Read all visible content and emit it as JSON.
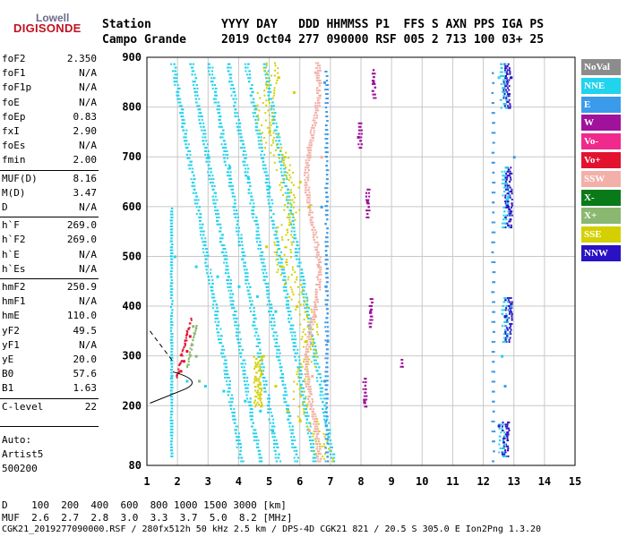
{
  "logo": {
    "brand": "Lowell",
    "product": "DIGISONDE"
  },
  "header": {
    "row1": "Station          YYYY DAY   DDD HHMMSS P1  FFS S AXN PPS IGA PS",
    "row2": "Campo Grande     2019 Oct04 277 090000 RSF 005 2 713 100 03+ 25"
  },
  "params": [
    {
      "k": "foF2",
      "v": "2.350"
    },
    {
      "k": "foF1",
      "v": "N/A"
    },
    {
      "k": "foF1p",
      "v": "N/A"
    },
    {
      "k": "foE",
      "v": "N/A"
    },
    {
      "k": "foEp",
      "v": "0.83"
    },
    {
      "k": "fxI",
      "v": "2.90"
    },
    {
      "k": "foEs",
      "v": "N/A"
    },
    {
      "k": "fmin",
      "v": "2.00"
    },
    {
      "k": "MUF(D)",
      "v": "8.16"
    },
    {
      "k": "M(D)",
      "v": "3.47"
    },
    {
      "k": "D",
      "v": "N/A"
    },
    {
      "k": "h`F",
      "v": "269.0"
    },
    {
      "k": "h`F2",
      "v": "269.0"
    },
    {
      "k": "h`E",
      "v": "N/A"
    },
    {
      "k": "h`Es",
      "v": "N/A"
    },
    {
      "k": "hmF2",
      "v": "250.9"
    },
    {
      "k": "hmF1",
      "v": "N/A"
    },
    {
      "k": "hmE",
      "v": "110.0"
    },
    {
      "k": "yF2",
      "v": "49.5"
    },
    {
      "k": "yF1",
      "v": "N/A"
    },
    {
      "k": "yE",
      "v": "20.0"
    },
    {
      "k": "B0",
      "v": "57.6"
    },
    {
      "k": "B1",
      "v": "1.63"
    },
    {
      "k": "C-level",
      "v": "22"
    }
  ],
  "autoscale": {
    "line1": "Auto:",
    "line2": "Artist5",
    "line3": "500200"
  },
  "legend": [
    {
      "label": "NoVal",
      "color": "#8c8c8c"
    },
    {
      "label": "NNE",
      "color": "#22d3ee"
    },
    {
      "label": "E",
      "color": "#3b9bea"
    },
    {
      "label": "W",
      "color": "#a0129c"
    },
    {
      "label": "Vo-",
      "color": "#f02a8c"
    },
    {
      "label": "Vo+",
      "color": "#e3122e"
    },
    {
      "label": "SSW",
      "color": "#f2b0a8"
    },
    {
      "label": "X-",
      "color": "#0a7a18"
    },
    {
      "label": "X+",
      "color": "#8ab870"
    },
    {
      "label": "SSE",
      "color": "#d4d000"
    },
    {
      "label": "NNW",
      "color": "#2a12c4"
    }
  ],
  "footer": {
    "row1": "D    100  200  400  600  800 1000 1500 3000 [km]",
    "row2": "MUF  2.6  2.7  2.8  3.0  3.3  3.7  5.0  8.2 [MHz]",
    "row3": "CGK21_2019277090000.RSF / 280fx512h 50 kHz 2.5 km / DPS-4D CGK21 821 / 20.5 S 305.0 E Ion2Png 1.3.20"
  },
  "chart_data": {
    "type": "scatter",
    "title": "",
    "xlabel": "",
    "ylabel": "",
    "xlim": [
      1,
      15
    ],
    "ylim": [
      80,
      900
    ],
    "x_ticks": [
      1,
      2,
      3,
      4,
      5,
      6,
      7,
      8,
      9,
      10,
      11,
      12,
      13,
      14,
      15
    ],
    "y_ticks": [
      80,
      200,
      300,
      400,
      500,
      600,
      700,
      800,
      900
    ],
    "grid": true,
    "legend_position": "right",
    "series": [
      {
        "name": "NNE",
        "color": "#22d3ee",
        "points": [
          [
            1.8,
            260
          ],
          [
            2.3,
            250
          ],
          [
            2.9,
            240
          ],
          [
            3.5,
            230
          ],
          [
            4.2,
            210
          ],
          [
            4.7,
            190
          ],
          [
            5.1,
            150
          ],
          [
            1.9,
            500
          ],
          [
            2.6,
            480
          ],
          [
            3.3,
            460
          ],
          [
            4.0,
            440
          ],
          [
            4.6,
            420
          ],
          [
            5.2,
            390
          ],
          [
            3.0,
            700
          ],
          [
            3.7,
            680
          ],
          [
            4.3,
            660
          ],
          [
            5.0,
            640
          ],
          [
            12.6,
            300
          ],
          [
            12.8,
            620
          ],
          [
            12.5,
            860
          ]
        ]
      },
      {
        "name": "E",
        "color": "#3b9bea",
        "points": [
          [
            6.8,
            250
          ],
          [
            6.9,
            330
          ],
          [
            6.85,
            440
          ],
          [
            6.7,
            600
          ],
          [
            12.7,
            240
          ],
          [
            12.9,
            400
          ],
          [
            13.0,
            700
          ],
          [
            6.8,
            850
          ]
        ]
      },
      {
        "name": "SSE",
        "color": "#d4d000",
        "points": [
          [
            4.8,
            300
          ],
          [
            5.2,
            240
          ],
          [
            5.6,
            190
          ],
          [
            6.0,
            170
          ],
          [
            4.9,
            520
          ],
          [
            5.4,
            480
          ],
          [
            5.9,
            400
          ],
          [
            6.2,
            330
          ],
          [
            5.0,
            750
          ],
          [
            5.5,
            700
          ],
          [
            6.0,
            650
          ],
          [
            6.3,
            600
          ],
          [
            5.3,
            860
          ],
          [
            5.8,
            830
          ]
        ]
      },
      {
        "name": "SSW",
        "color": "#f2b0a8",
        "points": [
          [
            6.3,
            150
          ],
          [
            6.4,
            260
          ],
          [
            6.5,
            380
          ],
          [
            6.6,
            480
          ],
          [
            6.7,
            700
          ],
          [
            6.5,
            870
          ]
        ]
      },
      {
        "name": "Vo+",
        "color": "#e3122e",
        "points": [
          [
            2.1,
            270
          ],
          [
            2.2,
            290
          ],
          [
            2.3,
            310
          ],
          [
            2.4,
            340
          ]
        ]
      },
      {
        "name": "W",
        "color": "#a0129c",
        "points": [
          [
            8.1,
            210
          ],
          [
            8.3,
            390
          ],
          [
            8.2,
            610
          ],
          [
            8.4,
            850
          ],
          [
            7.9,
            740
          ]
        ]
      },
      {
        "name": "NNW",
        "color": "#2a12c4",
        "points": [
          [
            12.5,
            160
          ],
          [
            12.7,
            380
          ],
          [
            12.8,
            600
          ],
          [
            12.9,
            860
          ]
        ]
      },
      {
        "name": "X+",
        "color": "#8ab870",
        "points": [
          [
            2.5,
            360
          ],
          [
            2.6,
            300
          ],
          [
            2.7,
            250
          ]
        ]
      }
    ]
  }
}
